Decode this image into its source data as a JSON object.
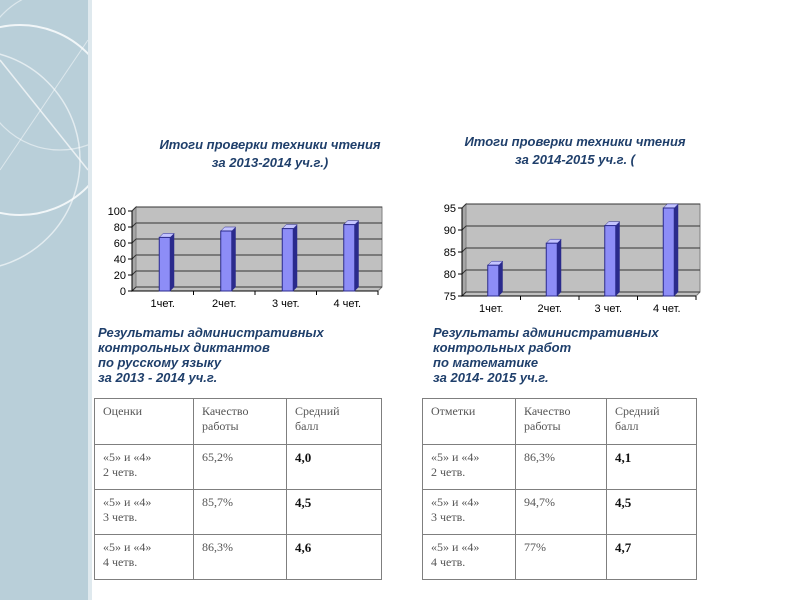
{
  "chart_data": [
    {
      "type": "bar",
      "title": "Итоги проверки техники чтения",
      "subtitle": "за 2013-2014 уч.г.)",
      "categories": [
        "1чет.",
        "2чет.",
        "3 чет.",
        "4 чет."
      ],
      "values": [
        67,
        75,
        78,
        83
      ],
      "ylim": [
        0,
        100
      ],
      "yticks": [
        0,
        20,
        40,
        60,
        80,
        100
      ],
      "xlabel": "",
      "ylabel": "",
      "grid": true,
      "legend": "none"
    },
    {
      "type": "bar",
      "title": "Итоги проверки техники чтения",
      "subtitle": "за 2014-2015 уч.г. (",
      "categories": [
        "1чет.",
        "2чет.",
        "3 чет.",
        "4 чет."
      ],
      "values": [
        82,
        87,
        91,
        95
      ],
      "ylim": [
        75,
        95
      ],
      "yticks": [
        75,
        80,
        85,
        90,
        95
      ],
      "xlabel": "",
      "ylabel": "",
      "grid": true,
      "legend": "none"
    }
  ],
  "colors": {
    "bar_front": "#8d8df7",
    "bar_side": "#2a2a8c",
    "bar_top": "#c4c4ff",
    "plot_bg": "#c0c0c0",
    "plot_wall": "#a6a6a6",
    "title": "#1f3f6b",
    "band": "#b9cfd9"
  },
  "sections": {
    "left": {
      "lines": [
        "Результаты административных",
        "контрольных диктантов",
        "по русскому языку",
        "за 2013 -  2014 уч.г."
      ],
      "table": {
        "headers": [
          [
            "Оценки"
          ],
          [
            "Качество",
            "работы"
          ],
          [
            "Средний",
            "балл"
          ]
        ],
        "rows": [
          {
            "grade": "«5» и «4»",
            "term": "2 четв.",
            "quality": "65,2%",
            "avg": "4,0"
          },
          {
            "grade": "«5» и «4»",
            "term": "3 четв.",
            "quality": "85,7%",
            "avg": "4,5"
          },
          {
            "grade": "«5» и «4»",
            "term": "4 четв.",
            "quality": "86,3%",
            "avg": "4,6"
          }
        ]
      }
    },
    "right": {
      "lines": [
        "Результаты административных",
        "контрольных работ",
        "по математике",
        "за 2014- 2015 уч.г."
      ],
      "table": {
        "headers": [
          [
            "Отметки"
          ],
          [
            "Качество",
            "работы"
          ],
          [
            "Средний",
            "балл"
          ]
        ],
        "rows": [
          {
            "grade": "«5»  и  «4»",
            "term": "2 четв.",
            "quality": "86,3%",
            "avg": "4,1"
          },
          {
            "grade": "«5»  и  «4»",
            "term": "3 четв.",
            "quality": "94,7%",
            "avg": "4,5"
          },
          {
            "grade": "«5»  и  «4»",
            "term": "4 четв.",
            "quality": "77%",
            "avg": "4,7"
          }
        ]
      }
    }
  }
}
